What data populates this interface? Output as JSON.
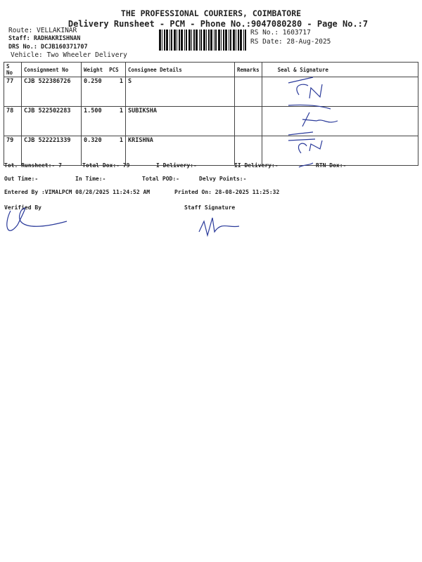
{
  "header": {
    "company": "THE PROFESSIONAL COURIERS, COIMBATORE",
    "subtitle": "Delivery Runsheet - PCM - Phone No.:9047080280 - Page No.:7",
    "route": "Route: VELLAKINAR",
    "staff": "Staff: RADHAKRISHNAN",
    "drs": "DRS No.: DCJB160371707",
    "vehicle": "Vehicle: Two Wheeler Delivery",
    "rs_no": "RS No.: 1603717",
    "rs_date": "RS Date: 28-Aug-2025"
  },
  "table": {
    "columns": [
      "S No",
      "Consignment No",
      "Weight",
      "PCS",
      "Consignee Details",
      "Remarks",
      "Seal & Signature"
    ],
    "rows": [
      {
        "sno": "77",
        "consignment": "CJB 522386726",
        "weight": "0.250",
        "pcs": "1",
        "consignee": "S",
        "remarks": ""
      },
      {
        "sno": "78",
        "consignment": "CJB 522502283",
        "weight": "1.500",
        "pcs": "1",
        "consignee": "SUBIKSHA",
        "remarks": ""
      },
      {
        "sno": "79",
        "consignment": "CJB 522221339",
        "weight": "0.320",
        "pcs": "1",
        "consignee": "KRISHNA",
        "remarks": ""
      }
    ]
  },
  "footer": {
    "tot_runsheet": "Tot. Runsheet:- 7",
    "total_dox": "Total Dox:-   79",
    "i_delivery": "I Delivery:-",
    "ii_delivery": "II Delivery:-",
    "rtn_dox": "RTN Dox:-",
    "out_time": "Out Time:-",
    "in_time": "In Time:-",
    "total_pod": "Total POD:-",
    "delvy_points": "Delvy Points:-",
    "entered_by": "Entered By :VIMALPCM 08/28/2025 11:24:52 AM",
    "printed_on": "Printed On: 28-08-2025 11:25:32",
    "verified_by": "Verified By",
    "staff_signature": "Staff Signature"
  }
}
